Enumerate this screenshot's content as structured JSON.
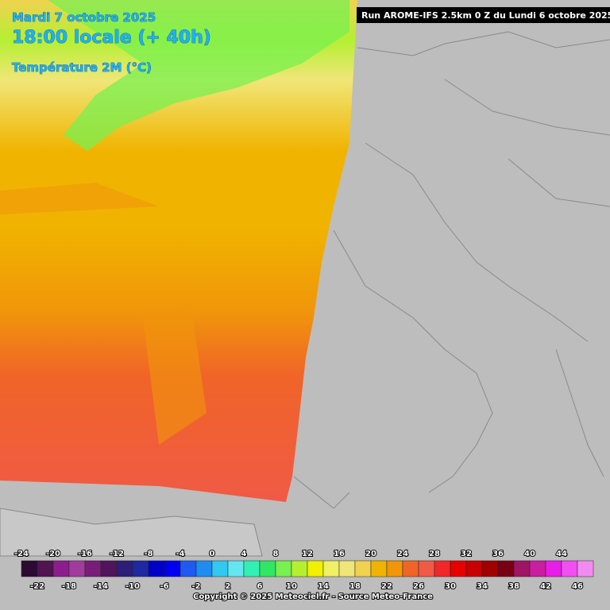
{
  "header": {
    "date": "Mardi 7 octobre 2025",
    "time": "18:00 locale (+ 40h)",
    "field": "Température 2M (°C)",
    "run": "Run AROME-IFS 2.5km 0 Z du Lundi 6 octobre 2025"
  },
  "legend": {
    "items": [
      {
        "value": -24,
        "color": "#2d0a32"
      },
      {
        "value": -22,
        "color": "#501450"
      },
      {
        "value": -20,
        "color": "#8c1e8c"
      },
      {
        "value": -18,
        "color": "#a03c9b"
      },
      {
        "value": -16,
        "color": "#781e78"
      },
      {
        "value": -14,
        "color": "#50145a"
      },
      {
        "value": -12,
        "color": "#2d1e78"
      },
      {
        "value": -10,
        "color": "#1e28a0"
      },
      {
        "value": -8,
        "color": "#0000c8"
      },
      {
        "value": -6,
        "color": "#0000f0"
      },
      {
        "value": -4,
        "color": "#1e5af0"
      },
      {
        "value": -2,
        "color": "#1e8cf0"
      },
      {
        "value": 0,
        "color": "#32c8f0"
      },
      {
        "value": 2,
        "color": "#64e6f0"
      },
      {
        "value": 4,
        "color": "#32f0b4"
      },
      {
        "value": 6,
        "color": "#32e664"
      },
      {
        "value": 8,
        "color": "#78f050"
      },
      {
        "value": 10,
        "color": "#b4f032"
      },
      {
        "value": 12,
        "color": "#f0f000"
      },
      {
        "value": 14,
        "color": "#f0f064"
      },
      {
        "value": 16,
        "color": "#f0e678"
      },
      {
        "value": 18,
        "color": "#f0d250"
      },
      {
        "value": 20,
        "color": "#f0b400"
      },
      {
        "value": 22,
        "color": "#f0960a"
      },
      {
        "value": 24,
        "color": "#f06428"
      },
      {
        "value": 26,
        "color": "#f05a46"
      },
      {
        "value": 28,
        "color": "#f02828"
      },
      {
        "value": 30,
        "color": "#e60000"
      },
      {
        "value": 32,
        "color": "#c80000"
      },
      {
        "value": 34,
        "color": "#a00000"
      },
      {
        "value": 36,
        "color": "#780014"
      },
      {
        "value": 38,
        "color": "#a01464"
      },
      {
        "value": 40,
        "color": "#c81ea0"
      },
      {
        "value": 42,
        "color": "#e61ee6"
      },
      {
        "value": 44,
        "color": "#f050f0"
      },
      {
        "value": 46,
        "color": "#f08cf0"
      }
    ]
  },
  "footer": {
    "copyright": "Copyright © 2025 Meteociel.fr - Source Meteo-France"
  }
}
